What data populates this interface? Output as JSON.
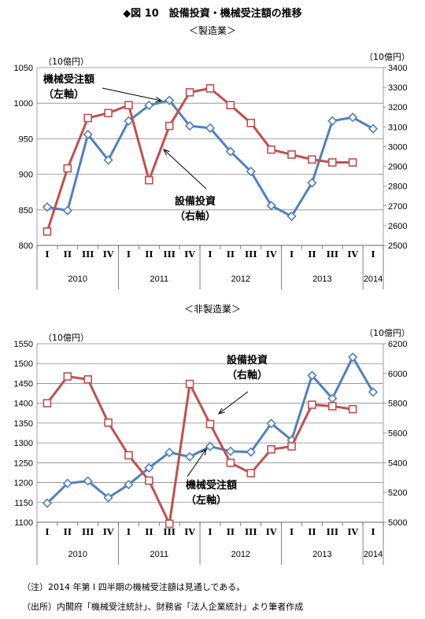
{
  "figure_title": "◆図 10　設備投資・機械受注額の推移",
  "note": "（注）2014 年第 I 四半期の機械受注額は見通しである。",
  "source": "（出所）内閣府「機械受注統計」、財務省「法人企業統計」より筆者作成",
  "colors": {
    "machinery": "#4f81bd",
    "capex": "#c0504d",
    "grid": "#888888"
  },
  "chart_data": [
    {
      "type": "line",
      "title": "＜製造業＞",
      "left_unit": "（10億円）",
      "right_unit": "（10億円）",
      "quarters": [
        "I",
        "II",
        "III",
        "IV",
        "I",
        "II",
        "III",
        "IV",
        "I",
        "II",
        "III",
        "IV",
        "I",
        "II",
        "III",
        "IV",
        "I"
      ],
      "years": [
        {
          "label": "2010",
          "start": 0,
          "end": 3
        },
        {
          "label": "2011",
          "start": 4,
          "end": 7
        },
        {
          "label": "2012",
          "start": 8,
          "end": 11
        },
        {
          "label": "2013",
          "start": 12,
          "end": 15
        },
        {
          "label": "2014",
          "start": 16,
          "end": 16
        }
      ],
      "left_axis": {
        "min": 800,
        "max": 1050,
        "step": 50,
        "ticks": [
          "800",
          "850",
          "900",
          "950",
          "1000",
          "1050"
        ]
      },
      "right_axis": {
        "min": 2500,
        "max": 3400,
        "step": 100,
        "ticks": [
          "2500",
          "2600",
          "2700",
          "2800",
          "2900",
          "3000",
          "3100",
          "3200",
          "3300",
          "3400"
        ]
      },
      "series": [
        {
          "key": "machinery",
          "axis": "left",
          "marker": "diamond",
          "values": [
            854,
            849,
            956,
            920,
            975,
            997,
            1004,
            968,
            965,
            932,
            904,
            856,
            841,
            888,
            975,
            980,
            964
          ]
        },
        {
          "key": "capex",
          "axis": "right",
          "marker": "square",
          "values": [
            2570,
            2890,
            3145,
            3170,
            3210,
            2830,
            3105,
            3275,
            3295,
            3210,
            3120,
            2985,
            2960,
            2935,
            2920,
            2920,
            null
          ]
        }
      ],
      "annotations": [
        {
          "series": "machinery",
          "line1": "機械受注額",
          "line2": "（左軸）"
        },
        {
          "series": "capex",
          "line1": "設備投資",
          "line2": "（右軸）"
        }
      ]
    },
    {
      "type": "line",
      "title": "＜非製造業＞",
      "left_unit": "（10億円）",
      "right_unit": "（10億円）",
      "quarters": [
        "I",
        "II",
        "III",
        "IV",
        "I",
        "II",
        "III",
        "IV",
        "I",
        "II",
        "III",
        "IV",
        "I",
        "II",
        "III",
        "IV",
        "I"
      ],
      "years": [
        {
          "label": "2010",
          "start": 0,
          "end": 3
        },
        {
          "label": "2011",
          "start": 4,
          "end": 7
        },
        {
          "label": "2012",
          "start": 8,
          "end": 11
        },
        {
          "label": "2013",
          "start": 12,
          "end": 15
        },
        {
          "label": "2014",
          "start": 16,
          "end": 16
        }
      ],
      "left_axis": {
        "min": 1100,
        "max": 1550,
        "step": 50,
        "ticks": [
          "1100",
          "1150",
          "1200",
          "1250",
          "1300",
          "1350",
          "1400",
          "1450",
          "1500",
          "1550"
        ]
      },
      "right_axis": {
        "min": 5000,
        "max": 6200,
        "step": 200,
        "ticks": [
          "5000",
          "5200",
          "5400",
          "5600",
          "5800",
          "6000",
          "6200"
        ]
      },
      "series": [
        {
          "key": "machinery",
          "axis": "left",
          "marker": "diamond",
          "values": [
            1148,
            1198,
            1204,
            1162,
            1195,
            1237,
            1276,
            1265,
            1291,
            1279,
            1277,
            1349,
            1307,
            1470,
            1412,
            1516,
            1428
          ]
        },
        {
          "key": "capex",
          "axis": "right",
          "marker": "square",
          "values": [
            5800,
            5980,
            5960,
            5670,
            5450,
            5280,
            4990,
            5930,
            5660,
            5400,
            5330,
            5490,
            5510,
            5790,
            5780,
            5760,
            null
          ]
        }
      ],
      "annotations": [
        {
          "series": "capex",
          "line1": "設備投資",
          "line2": "（右軸）"
        },
        {
          "series": "machinery",
          "line1": "機械受注額",
          "line2": "（左軸）"
        }
      ]
    }
  ]
}
